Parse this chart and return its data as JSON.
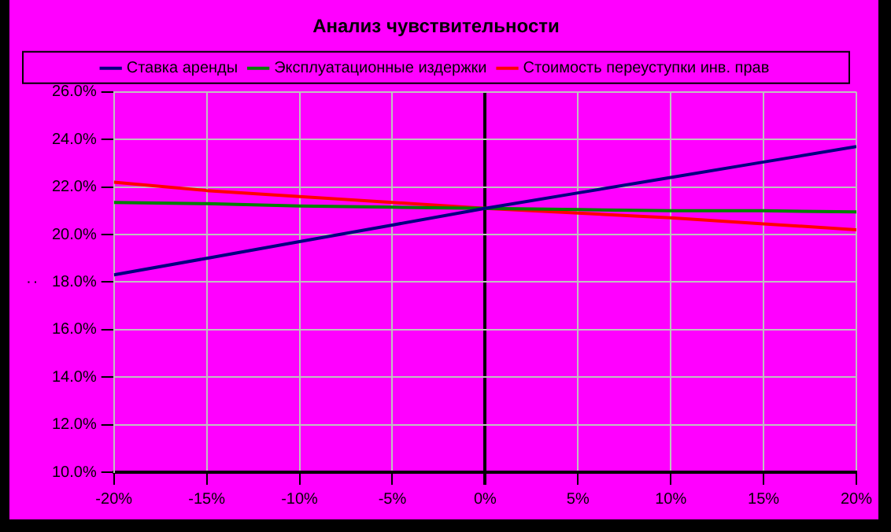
{
  "chart_data": {
    "type": "line",
    "title": "Анализ чувствительности",
    "ylabel": ":",
    "x": [
      -20,
      -15,
      -10,
      -5,
      0,
      5,
      10,
      15,
      20
    ],
    "series": [
      {
        "name": "Ставка аренды",
        "color": "#000080",
        "values": [
          18.3,
          19.0,
          19.7,
          20.4,
          21.1,
          21.75,
          22.4,
          23.05,
          23.7
        ]
      },
      {
        "name": "Эксплуатационные издержки",
        "color": "#008000",
        "values": [
          21.35,
          21.3,
          21.2,
          21.15,
          21.1,
          21.05,
          21.0,
          21.0,
          20.95
        ]
      },
      {
        "name": "Стоимость переуступки инв. прав",
        "color": "#ff0000",
        "values": [
          22.2,
          21.85,
          21.6,
          21.35,
          21.1,
          20.9,
          20.7,
          20.45,
          20.2
        ]
      }
    ],
    "xlim": [
      -20,
      20
    ],
    "xticks": [
      {
        "value": -20,
        "label": "-20%"
      },
      {
        "value": -15,
        "label": "-15%"
      },
      {
        "value": -10,
        "label": "-10%"
      },
      {
        "value": -5,
        "label": "-5%"
      },
      {
        "value": 0,
        "label": "0%"
      },
      {
        "value": 5,
        "label": "5%"
      },
      {
        "value": 10,
        "label": "10%"
      },
      {
        "value": 15,
        "label": "15%"
      },
      {
        "value": 20,
        "label": "20%"
      }
    ],
    "ylim": [
      10,
      26
    ],
    "yticks": [
      {
        "value": 10,
        "label": "10.0%"
      },
      {
        "value": 12,
        "label": "12.0%"
      },
      {
        "value": 14,
        "label": "14.0%"
      },
      {
        "value": 16,
        "label": "16.0%"
      },
      {
        "value": 18,
        "label": "18.0%"
      },
      {
        "value": 20,
        "label": "20.0%"
      },
      {
        "value": 22,
        "label": "22.0%"
      },
      {
        "value": 24,
        "label": "24.0%"
      },
      {
        "value": 26,
        "label": "26.0%"
      }
    ],
    "grid": true,
    "legend": "top",
    "marker": "none",
    "line_style": "solid"
  }
}
